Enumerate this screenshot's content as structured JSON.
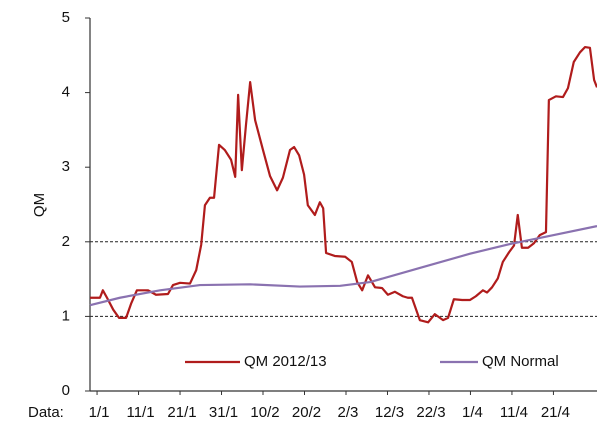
{
  "chart_data": {
    "type": "line",
    "ylabel": "QM",
    "xlabel": "Data:",
    "xlim": [
      -1.7,
      120.5
    ],
    "ylim": [
      0,
      5
    ],
    "yticks": [
      0,
      1,
      2,
      3,
      4,
      5
    ],
    "xticks": [
      {
        "value": 0,
        "label": "1/1"
      },
      {
        "value": 10,
        "label": "11/1"
      },
      {
        "value": 20,
        "label": "21/1"
      },
      {
        "value": 30,
        "label": "31/1"
      },
      {
        "value": 40,
        "label": "10/2"
      },
      {
        "value": 50,
        "label": "20/2"
      },
      {
        "value": 60,
        "label": "2/3"
      },
      {
        "value": 70,
        "label": "12/3"
      },
      {
        "value": 80,
        "label": "22/3"
      },
      {
        "value": 90,
        "label": "1/4"
      },
      {
        "value": 100,
        "label": "11/4"
      },
      {
        "value": 110,
        "label": "21/4"
      }
    ],
    "grid_lines": [
      1,
      2
    ],
    "series": [
      {
        "name": "QM 2012/13",
        "color": "#b01c1c",
        "x": [
          -1.7,
          0.7,
          1.4,
          2.4,
          3.9,
          5.3,
          7,
          8.2,
          9.6,
          12.3,
          14.2,
          17.1,
          18.3,
          20,
          22.4,
          23.9,
          25.1,
          26,
          27.2,
          28.2,
          29.4,
          30.8,
          32.3,
          33.3,
          34,
          34.9,
          35.9,
          36.9,
          38.1,
          40,
          41.7,
          43.4,
          44.8,
          46.5,
          47.5,
          48.7,
          49.9,
          50.8,
          52.5,
          53.7,
          54.5,
          55.2,
          57.3,
          59.8,
          61.4,
          62.7,
          63.9,
          65.3,
          67,
          68.7,
          70.1,
          71.8,
          73.7,
          74.9,
          75.9,
          77.8,
          79.8,
          81.4,
          83.4,
          84.6,
          86,
          88,
          89.9,
          91.3,
          93,
          94,
          95.2,
          96.6,
          97.8,
          99.3,
          100.5,
          101.4,
          102.4,
          103.9,
          105.3,
          106.7,
          108.2,
          108.9,
          110.6,
          112.3,
          113.5,
          114.9,
          116.4,
          117.6,
          118.8,
          119.8,
          120.5
        ],
        "values": [
          1.25,
          1.25,
          1.35,
          1.25,
          1.09,
          0.98,
          0.98,
          1.17,
          1.35,
          1.35,
          1.29,
          1.3,
          1.42,
          1.45,
          1.44,
          1.62,
          1.96,
          2.49,
          2.59,
          2.59,
          3.3,
          3.23,
          3.1,
          2.87,
          3.97,
          2.96,
          3.57,
          4.14,
          3.63,
          3.23,
          2.88,
          2.69,
          2.86,
          3.23,
          3.27,
          3.16,
          2.9,
          2.49,
          2.36,
          2.53,
          2.45,
          1.85,
          1.81,
          1.8,
          1.73,
          1.46,
          1.35,
          1.55,
          1.39,
          1.38,
          1.29,
          1.33,
          1.27,
          1.25,
          1.25,
          0.95,
          0.92,
          1.03,
          0.95,
          0.98,
          1.23,
          1.22,
          1.22,
          1.27,
          1.35,
          1.32,
          1.39,
          1.51,
          1.73,
          1.86,
          1.95,
          2.36,
          1.92,
          1.92,
          1.98,
          2.09,
          2.13,
          3.9,
          3.95,
          3.94,
          4.06,
          4.41,
          4.54,
          4.61,
          4.6,
          4.17,
          4.07
        ]
      },
      {
        "name": "QM Normal",
        "color": "#8a72b0",
        "x": [
          -1.7,
          5.5,
          15.2,
          24.8,
          36.9,
          48.9,
          58.6,
          65.8,
          77.8,
          89.9,
          99.5,
          109.2,
          120.5
        ],
        "values": [
          1.15,
          1.25,
          1.35,
          1.42,
          1.43,
          1.4,
          1.41,
          1.46,
          1.65,
          1.84,
          1.97,
          2.08,
          2.21
        ]
      }
    ]
  }
}
